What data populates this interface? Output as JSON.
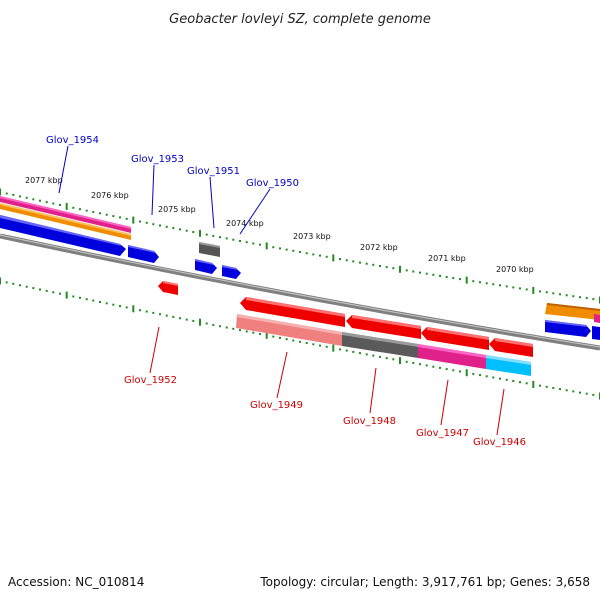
{
  "title": "Geobacter lovleyi SZ, complete genome",
  "footer": {
    "accession": "Accession: NC_010814",
    "summary": "Topology: circular; Length: 3,917,761 bp; Genes: 3,658"
  },
  "colors": {
    "forward_label": "#0000cc",
    "reverse_label": "#cc0000",
    "dots": "#228b22",
    "backbone": "#808080"
  },
  "ticks": [
    "2077 kbp",
    "2076 kbp",
    "2075 kbp",
    "2074 kbp",
    "2073 kbp",
    "2072 kbp",
    "2071 kbp",
    "2070 kbp"
  ],
  "forward_genes": [
    "Glov_1954",
    "Glov_1953",
    "Glov_1951",
    "Glov_1950"
  ],
  "reverse_genes": [
    "Glov_1952",
    "Glov_1949",
    "Glov_1948",
    "Glov_1947",
    "Glov_1946"
  ]
}
